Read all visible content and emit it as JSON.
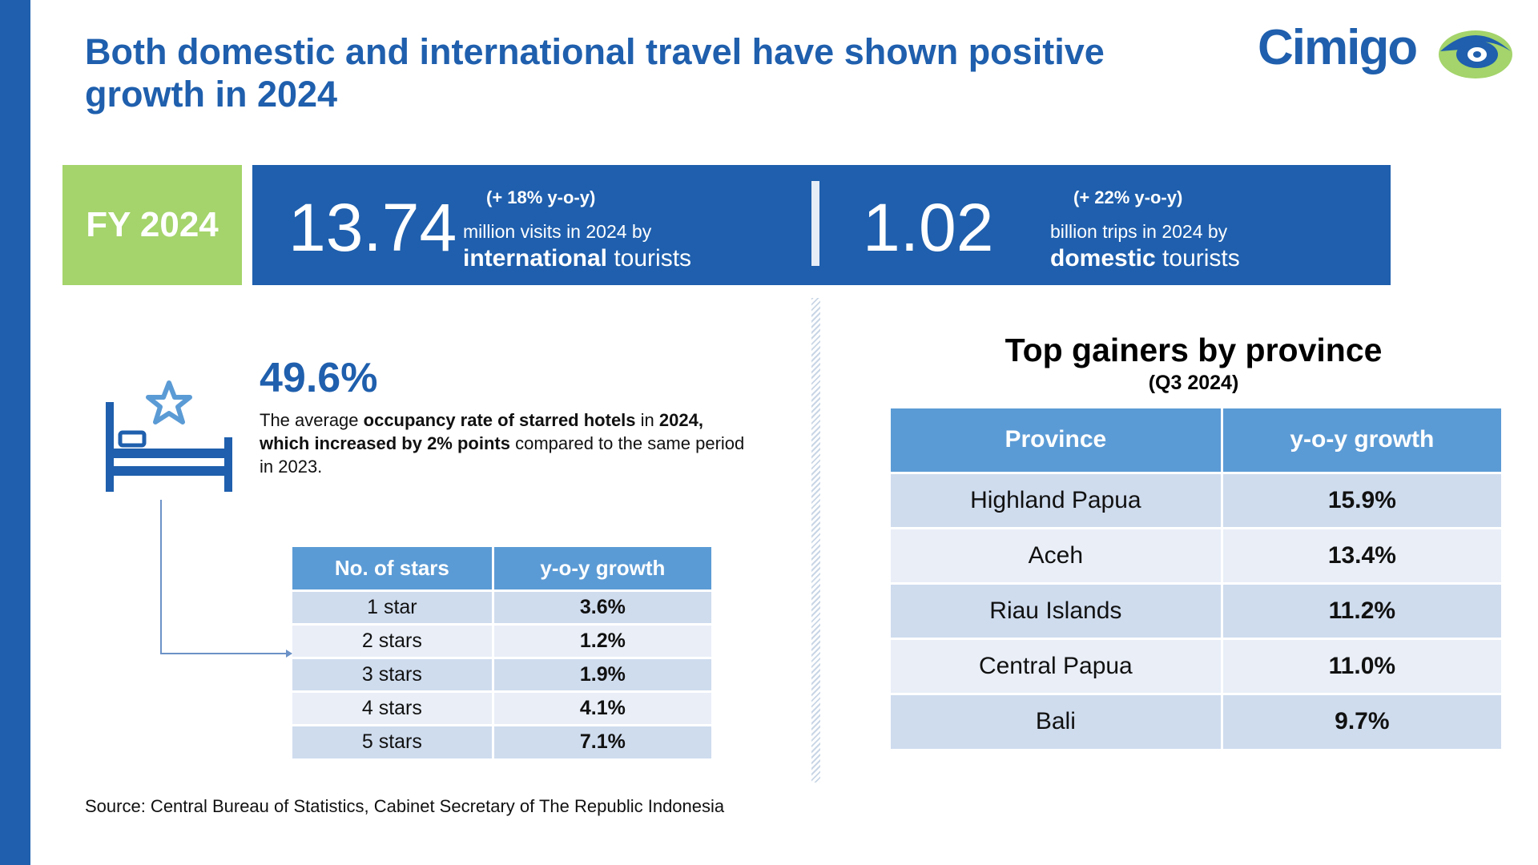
{
  "title": "Both domestic and international travel have shown positive growth in 2024",
  "brand": {
    "name": "Cimigo",
    "primary_color": "#1F5FAD",
    "accent_color": "#A4D46B"
  },
  "fy_label": "FY 2024",
  "kpis": [
    {
      "value": "13.74",
      "yoy": "(+ 18% y-o-y)",
      "line1": "million visits in 2024 by",
      "line2_bold": "international",
      "line2_rest": " tourists"
    },
    {
      "value": "1.02",
      "yoy": "(+ 22% y-o-y)",
      "line1": "billion trips in 2024 by",
      "line2_bold": "domestic",
      "line2_rest": " tourists"
    }
  ],
  "occupancy": {
    "value": "49.6%",
    "text_parts": [
      "The average ",
      "occupancy rate of starred hotels",
      " in ",
      "2024, which increased by 2% points",
      " compared to the same period in 2023."
    ],
    "icon": "bed-with-star-icon"
  },
  "stars_table": {
    "headers": [
      "No. of stars",
      "y-o-y growth"
    ],
    "rows": [
      [
        "1 star",
        "3.6%"
      ],
      [
        "2 stars",
        "1.2%"
      ],
      [
        "3 stars",
        "1.9%"
      ],
      [
        "4 stars",
        "4.1%"
      ],
      [
        "5 stars",
        "7.1%"
      ]
    ]
  },
  "province": {
    "title": "Top gainers by province",
    "subtitle": "(Q3 2024)",
    "headers": [
      "Province",
      "y-o-y growth"
    ],
    "rows": [
      [
        "Highland Papua",
        "15.9%"
      ],
      [
        "Aceh",
        "13.4%"
      ],
      [
        "Riau Islands",
        "11.2%"
      ],
      [
        "Central Papua",
        "11.0%"
      ],
      [
        "Bali",
        "9.7%"
      ]
    ]
  },
  "source": "Source: Central Bureau of Statistics, Cabinet Secretary of The Republic Indonesia"
}
